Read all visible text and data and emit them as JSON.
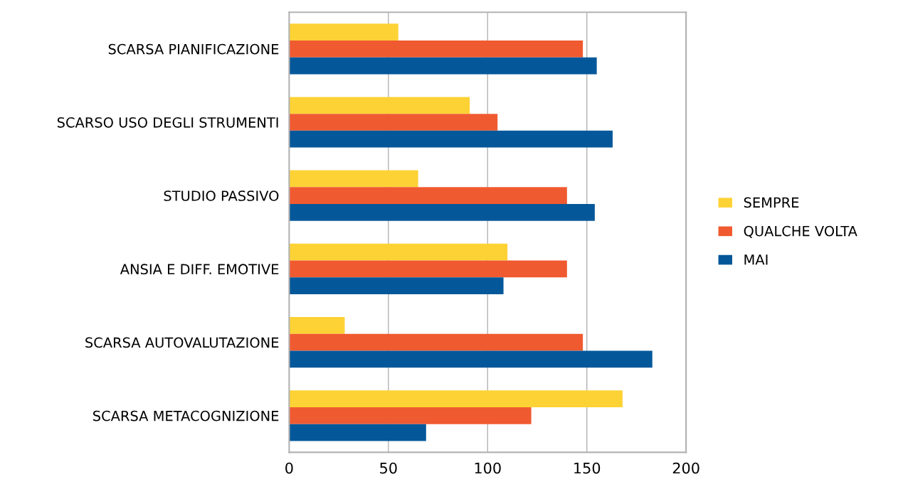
{
  "chart_data": {
    "type": "bar",
    "orientation": "horizontal",
    "categories": [
      "SCARSA PIANIFICAZIONE",
      "SCARSO USO DEGLI STRUMENTI",
      "STUDIO PASSIVO",
      "ANSIA E DIFF. EMOTIVE",
      "SCARSA AUTOVALUTAZIONE",
      "SCARSA METACOGNIZIONE"
    ],
    "series": [
      {
        "name": "SEMPRE",
        "color": "#fdd235",
        "values": [
          55,
          91,
          65,
          110,
          28,
          168
        ]
      },
      {
        "name": "QUALCHE VOLTA",
        "color": "#f05a30",
        "values": [
          148,
          105,
          140,
          140,
          148,
          122
        ]
      },
      {
        "name": "MAI",
        "color": "#04589a",
        "values": [
          155,
          163,
          154,
          108,
          183,
          69
        ]
      }
    ],
    "xlim": [
      0,
      200
    ],
    "xticks": [
      0,
      50,
      100,
      150,
      200
    ],
    "grid": "x",
    "legend": "right"
  }
}
